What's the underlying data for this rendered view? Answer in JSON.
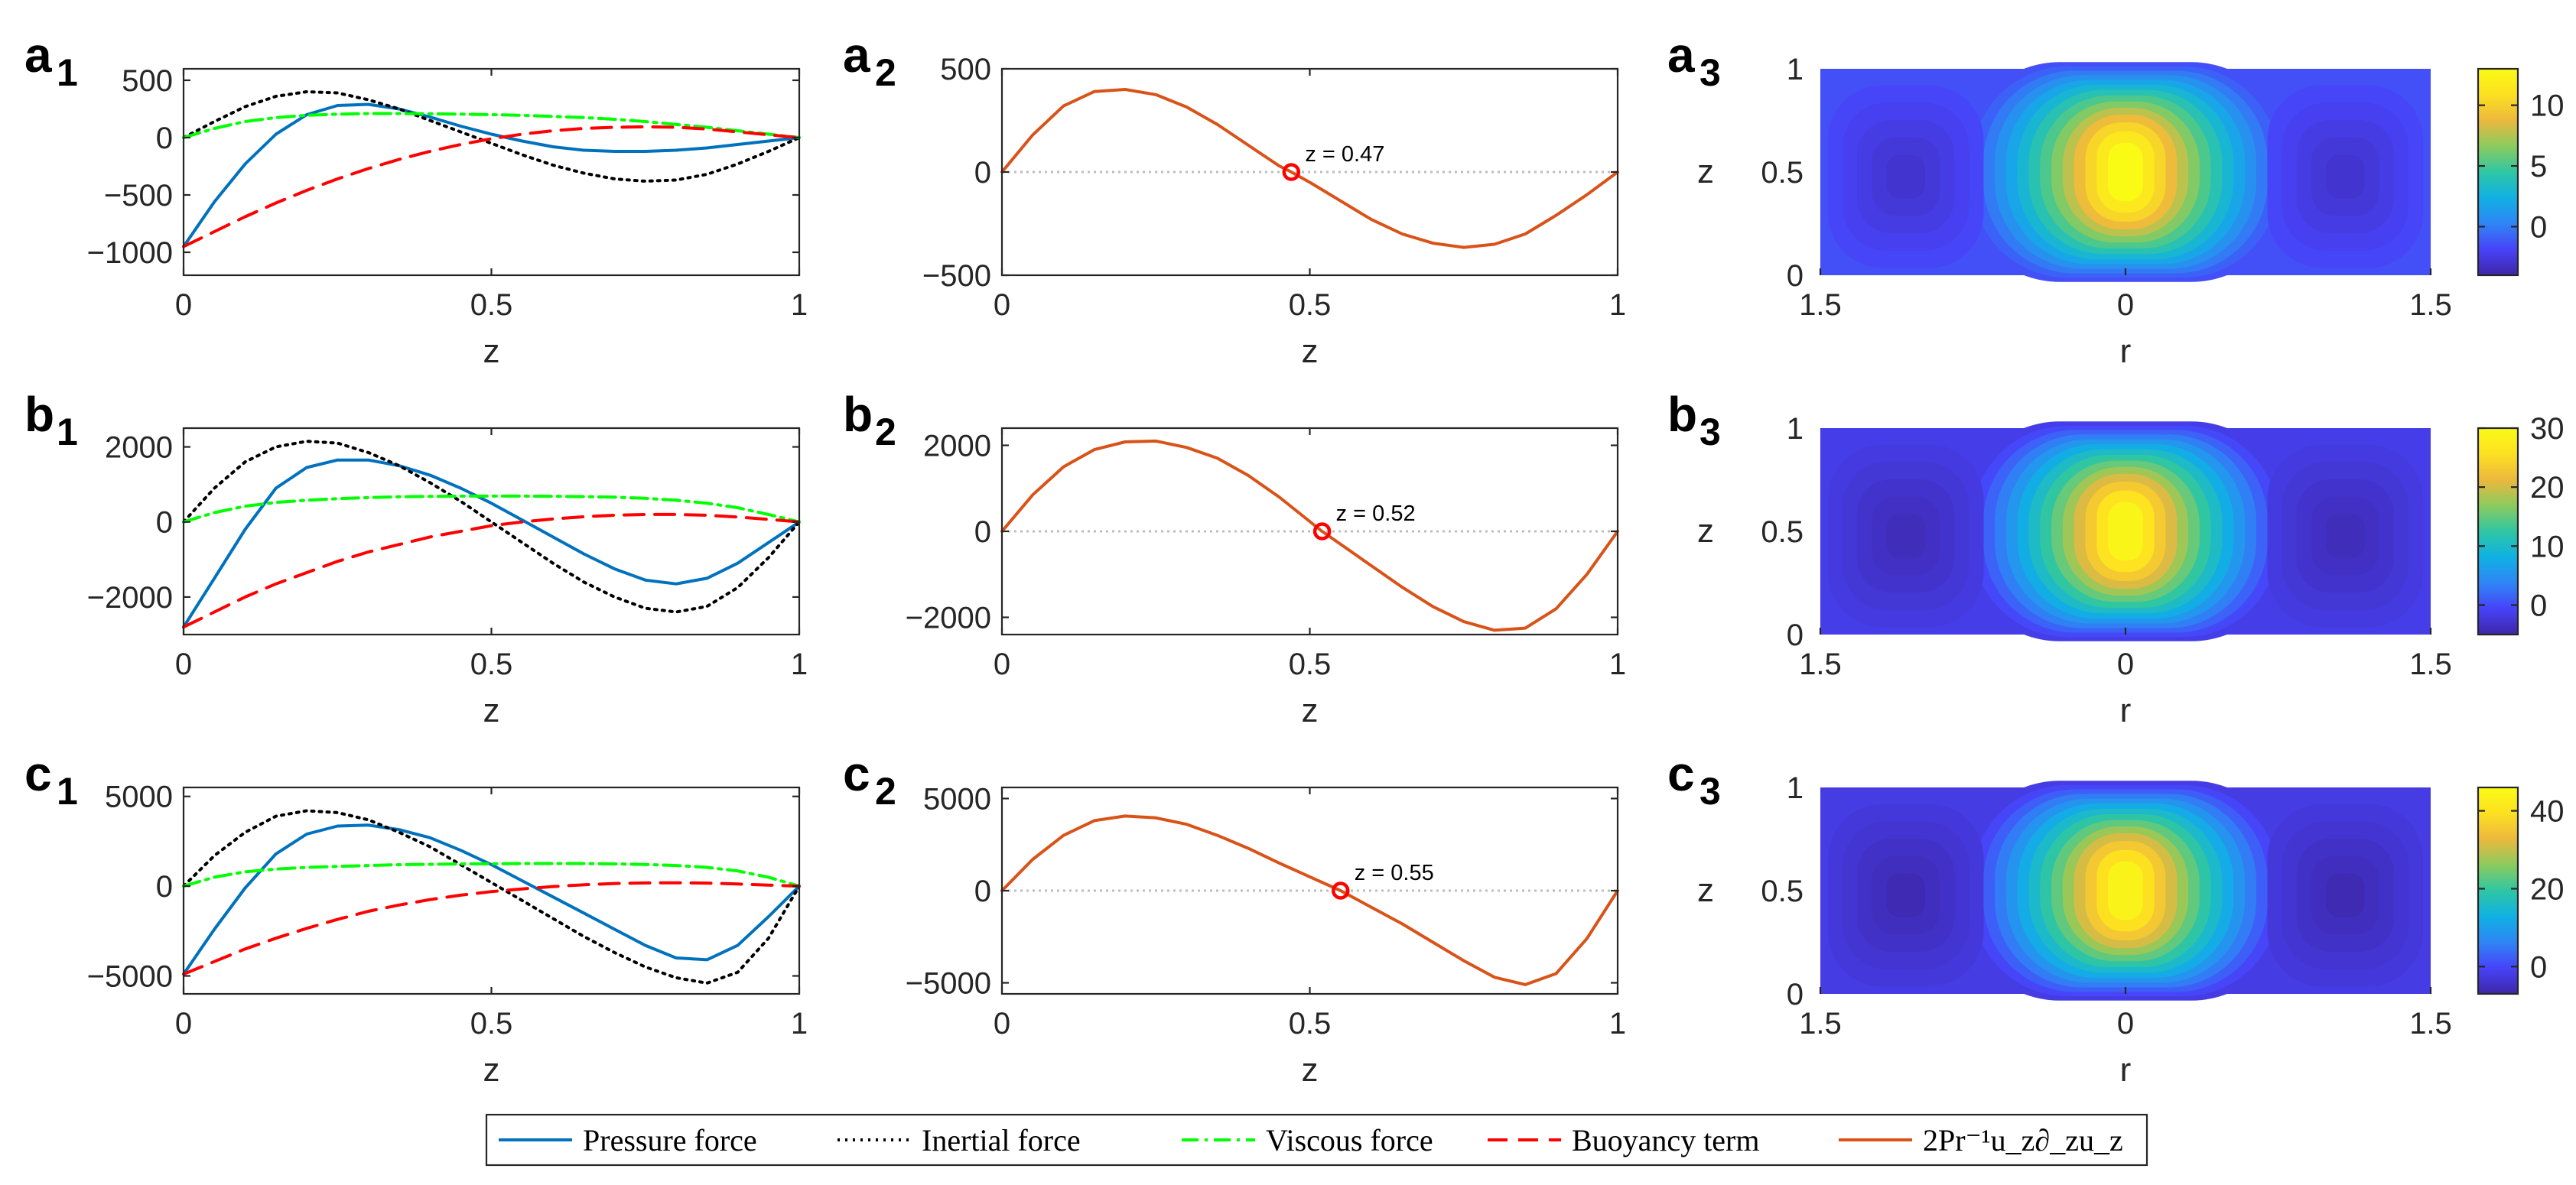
{
  "chart_data": [
    {
      "id": "a1",
      "type": "line",
      "panel_label": {
        "letter": "a",
        "sub": "1"
      },
      "xlabel": "z",
      "ylabel": "",
      "xlim": [
        0,
        1
      ],
      "ylim": [
        -1200,
        600
      ],
      "xticks": [
        "0",
        "0.5",
        "1"
      ],
      "yticks": [
        "500",
        "0",
        "−500",
        "−1000"
      ],
      "x": [
        0,
        0.05,
        0.1,
        0.15,
        0.2,
        0.25,
        0.3,
        0.35,
        0.4,
        0.45,
        0.5,
        0.55,
        0.6,
        0.65,
        0.7,
        0.75,
        0.8,
        0.85,
        0.9,
        0.95,
        1.0
      ],
      "series": [
        {
          "name": "Pressure force",
          "key": "pressure",
          "values": [
            -950,
            -560,
            -230,
            30,
            200,
            280,
            290,
            250,
            180,
            100,
            30,
            -30,
            -80,
            -110,
            -120,
            -120,
            -110,
            -90,
            -60,
            -30,
            0
          ]
        },
        {
          "name": "Inertial force",
          "key": "inertial",
          "values": [
            0,
            140,
            270,
            360,
            400,
            390,
            330,
            250,
            150,
            50,
            -50,
            -150,
            -240,
            -310,
            -360,
            -380,
            -370,
            -320,
            -230,
            -120,
            0
          ]
        },
        {
          "name": "Viscous force",
          "key": "viscous",
          "values": [
            0,
            80,
            140,
            175,
            195,
            205,
            210,
            210,
            208,
            205,
            200,
            195,
            185,
            175,
            160,
            140,
            115,
            90,
            60,
            30,
            0
          ]
        },
        {
          "name": "Buoyancy term",
          "key": "buoyancy",
          "values": [
            -950,
            -820,
            -690,
            -570,
            -460,
            -360,
            -270,
            -190,
            -120,
            -60,
            -10,
            30,
            60,
            80,
            90,
            95,
            90,
            75,
            50,
            25,
            0
          ]
        }
      ]
    },
    {
      "id": "a2",
      "type": "line",
      "panel_label": {
        "letter": "a",
        "sub": "2"
      },
      "xlabel": "z",
      "ylabel": "",
      "xlim": [
        0,
        1
      ],
      "ylim": [
        -500,
        500
      ],
      "xticks": [
        "0",
        "0.5",
        "1"
      ],
      "yticks": [
        "500",
        "0",
        "−500"
      ],
      "x": [
        0,
        0.05,
        0.1,
        0.15,
        0.2,
        0.25,
        0.3,
        0.35,
        0.4,
        0.45,
        0.47,
        0.5,
        0.55,
        0.6,
        0.65,
        0.7,
        0.75,
        0.8,
        0.85,
        0.9,
        0.95,
        1.0
      ],
      "series": [
        {
          "name": "2Pr⁻¹u_z∂_zu_z",
          "key": "product",
          "values": [
            0,
            180,
            320,
            390,
            400,
            375,
            315,
            230,
            130,
            30,
            0,
            -50,
            -140,
            -230,
            -300,
            -345,
            -365,
            -350,
            -300,
            -210,
            -110,
            0
          ]
        }
      ],
      "zero_point": {
        "z": 0.47,
        "label": "z = 0.47"
      }
    },
    {
      "id": "a3",
      "type": "heatmap",
      "panel_label": {
        "letter": "a",
        "sub": "3"
      },
      "xlabel": "r",
      "ylabel": "z",
      "xticks": [
        "1.5",
        "0",
        "1.5"
      ],
      "yticks": [
        "1",
        "0.5",
        "0"
      ],
      "colorbar_ticks": [
        "10",
        "5",
        "0"
      ],
      "colorbar_range": [
        -4,
        13
      ],
      "colorbar_tick_values": [
        10,
        5,
        0
      ],
      "peak": 13,
      "cell_min": -3,
      "background": -1.5
    },
    {
      "id": "b1",
      "type": "line",
      "panel_label": {
        "letter": "b",
        "sub": "1"
      },
      "xlabel": "z",
      "ylabel": "",
      "xlim": [
        0,
        1
      ],
      "ylim": [
        -3000,
        2500
      ],
      "xticks": [
        "0",
        "0.5",
        "1"
      ],
      "yticks": [
        "2000",
        "0",
        "−2000"
      ],
      "x": [
        0,
        0.05,
        0.1,
        0.15,
        0.2,
        0.25,
        0.3,
        0.35,
        0.4,
        0.45,
        0.5,
        0.55,
        0.6,
        0.65,
        0.7,
        0.75,
        0.8,
        0.85,
        0.9,
        0.95,
        1.0
      ],
      "series": [
        {
          "name": "Pressure force",
          "key": "pressure",
          "values": [
            -2800,
            -1500,
            -200,
            900,
            1450,
            1650,
            1650,
            1500,
            1250,
            900,
            500,
            50,
            -400,
            -850,
            -1250,
            -1550,
            -1650,
            -1500,
            -1100,
            -550,
            0
          ]
        },
        {
          "name": "Inertial force",
          "key": "inertial",
          "values": [
            0,
            900,
            1600,
            2000,
            2150,
            2100,
            1850,
            1500,
            1050,
            550,
            0,
            -550,
            -1100,
            -1600,
            -2000,
            -2300,
            -2400,
            -2250,
            -1750,
            -950,
            0
          ]
        },
        {
          "name": "Viscous force",
          "key": "viscous",
          "values": [
            0,
            250,
            420,
            520,
            580,
            620,
            650,
            670,
            680,
            690,
            690,
            690,
            685,
            675,
            660,
            630,
            580,
            500,
            380,
            200,
            0
          ]
        },
        {
          "name": "Buoyancy term",
          "key": "buoyancy",
          "values": [
            -2800,
            -2400,
            -2000,
            -1650,
            -1350,
            -1050,
            -800,
            -600,
            -400,
            -250,
            -100,
            0,
            80,
            140,
            180,
            200,
            200,
            180,
            130,
            70,
            0
          ]
        }
      ]
    },
    {
      "id": "b2",
      "type": "line",
      "panel_label": {
        "letter": "b",
        "sub": "2"
      },
      "xlabel": "z",
      "ylabel": "",
      "xlim": [
        0,
        1
      ],
      "ylim": [
        -2400,
        2400
      ],
      "xticks": [
        "0",
        "0.5",
        "1"
      ],
      "yticks": [
        "2000",
        "0",
        "−2000"
      ],
      "x": [
        0,
        0.05,
        0.1,
        0.15,
        0.2,
        0.25,
        0.3,
        0.35,
        0.4,
        0.45,
        0.52,
        0.55,
        0.6,
        0.65,
        0.7,
        0.75,
        0.8,
        0.85,
        0.9,
        0.95,
        1.0
      ],
      "series": [
        {
          "name": "2Pr⁻¹u_z∂_zu_z",
          "key": "product",
          "values": [
            0,
            850,
            1500,
            1900,
            2080,
            2100,
            1950,
            1700,
            1300,
            800,
            0,
            -300,
            -800,
            -1300,
            -1750,
            -2100,
            -2300,
            -2250,
            -1800,
            -1000,
            0
          ]
        }
      ],
      "zero_point": {
        "z": 0.52,
        "label": "z = 0.52"
      }
    },
    {
      "id": "b3",
      "type": "heatmap",
      "panel_label": {
        "letter": "b",
        "sub": "3"
      },
      "xlabel": "r",
      "ylabel": "z",
      "xticks": [
        "1.5",
        "0",
        "1.5"
      ],
      "yticks": [
        "1",
        "0.5",
        "0"
      ],
      "colorbar_ticks": [
        "30",
        "20",
        "10",
        "0"
      ],
      "colorbar_range": [
        -5,
        30
      ],
      "colorbar_tick_values": [
        30,
        20,
        10,
        0
      ],
      "peak": 29,
      "cell_min": -4,
      "background": -1.5
    },
    {
      "id": "c1",
      "type": "line",
      "panel_label": {
        "letter": "c",
        "sub": "1"
      },
      "xlabel": "z",
      "ylabel": "",
      "xlim": [
        0,
        1
      ],
      "ylim": [
        -6000,
        5500
      ],
      "xticks": [
        "0",
        "0.5",
        "1"
      ],
      "yticks": [
        "5000",
        "0",
        "−5000"
      ],
      "x": [
        0,
        0.05,
        0.1,
        0.15,
        0.2,
        0.25,
        0.3,
        0.35,
        0.4,
        0.45,
        0.5,
        0.55,
        0.6,
        0.65,
        0.7,
        0.75,
        0.8,
        0.85,
        0.9,
        0.95,
        1.0
      ],
      "series": [
        {
          "name": "Pressure force",
          "key": "pressure",
          "values": [
            -4900,
            -2400,
            -100,
            1800,
            2900,
            3350,
            3400,
            3150,
            2700,
            2000,
            1200,
            300,
            -600,
            -1500,
            -2400,
            -3300,
            -4000,
            -4100,
            -3300,
            -1700,
            0
          ]
        },
        {
          "name": "Inertial force",
          "key": "inertial",
          "values": [
            0,
            1700,
            3000,
            3900,
            4200,
            4100,
            3700,
            3000,
            2200,
            1200,
            200,
            -800,
            -1800,
            -2800,
            -3700,
            -4500,
            -5100,
            -5400,
            -4800,
            -2900,
            0
          ]
        },
        {
          "name": "Viscous force",
          "key": "viscous",
          "values": [
            0,
            500,
            800,
            950,
            1050,
            1100,
            1150,
            1200,
            1220,
            1240,
            1250,
            1260,
            1260,
            1260,
            1240,
            1210,
            1150,
            1050,
            850,
            500,
            0
          ]
        },
        {
          "name": "Buoyancy term",
          "key": "buoyancy",
          "values": [
            -4900,
            -4200,
            -3500,
            -2900,
            -2350,
            -1850,
            -1400,
            -1050,
            -750,
            -500,
            -300,
            -150,
            -20,
            80,
            150,
            180,
            190,
            170,
            120,
            60,
            0
          ]
        }
      ]
    },
    {
      "id": "c2",
      "type": "line",
      "panel_label": {
        "letter": "c",
        "sub": "2"
      },
      "xlabel": "z",
      "ylabel": "",
      "xlim": [
        0,
        1
      ],
      "ylim": [
        -5600,
        5600
      ],
      "xticks": [
        "0",
        "0.5",
        "1"
      ],
      "yticks": [
        "5000",
        "0",
        "−5000"
      ],
      "x": [
        0,
        0.05,
        0.1,
        0.15,
        0.2,
        0.25,
        0.3,
        0.35,
        0.4,
        0.45,
        0.5,
        0.55,
        0.6,
        0.65,
        0.7,
        0.75,
        0.8,
        0.85,
        0.9,
        0.95,
        1.0
      ],
      "series": [
        {
          "name": "2Pr⁻¹u_z∂_zu_z",
          "key": "product",
          "values": [
            0,
            1700,
            3000,
            3800,
            4050,
            3950,
            3600,
            3000,
            2300,
            1500,
            750,
            0,
            -900,
            -1800,
            -2800,
            -3800,
            -4700,
            -5100,
            -4500,
            -2600,
            0
          ]
        }
      ],
      "zero_point": {
        "z": 0.55,
        "label": "z = 0.55"
      }
    },
    {
      "id": "c3",
      "type": "heatmap",
      "panel_label": {
        "letter": "c",
        "sub": "3"
      },
      "xlabel": "r",
      "ylabel": "z",
      "xticks": [
        "1.5",
        "0",
        "1.5"
      ],
      "yticks": [
        "1",
        "0.5",
        "0"
      ],
      "colorbar_ticks": [
        "40",
        "20",
        "0"
      ],
      "colorbar_range": [
        -7,
        46
      ],
      "colorbar_tick_values": [
        40,
        20,
        0
      ],
      "peak": 44,
      "cell_min": -6,
      "background": -2
    }
  ],
  "legend": {
    "placement": "bottom-center",
    "entries": [
      {
        "key": "pressure",
        "label": "Pressure force"
      },
      {
        "key": "inertial",
        "label": "Inertial force"
      },
      {
        "key": "viscous",
        "label": "Viscous force"
      },
      {
        "key": "buoyancy",
        "label": "Buoyancy term"
      },
      {
        "key": "product",
        "label": "2Pr⁻¹u_z∂_zu_z"
      }
    ]
  },
  "styles": {
    "pressure": {
      "color": "#0072bd",
      "dash": ""
    },
    "inertial": {
      "color": "#000000",
      "dash": "3,7"
    },
    "viscous": {
      "color": "#00ff00",
      "dash": "22,8,4,8"
    },
    "buoyancy": {
      "color": "#ff0000",
      "dash": "26,14"
    },
    "product": {
      "color": "#d95319",
      "dash": ""
    },
    "zero_line": "#bdbdbd",
    "marker": "#ff0000"
  },
  "colormap": [
    "#3e26a8",
    "#4743f8",
    "#2f85f5",
    "#10b1e3",
    "#2fc6a3",
    "#8ccb5e",
    "#ecb83d",
    "#fde021",
    "#f9fb15"
  ]
}
